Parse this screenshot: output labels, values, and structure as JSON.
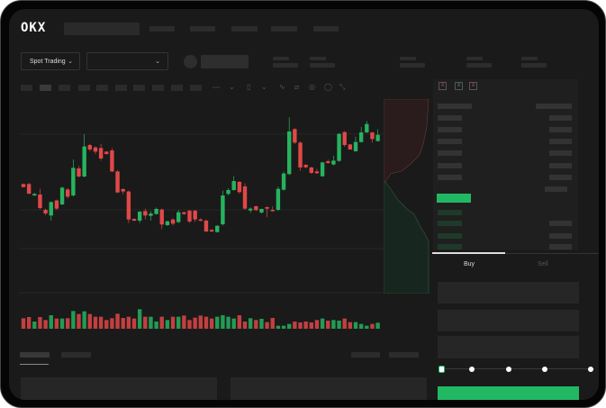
{
  "header": {
    "logo": "OKX"
  },
  "market_select": {
    "label": "Spot Trading",
    "pair_value": ""
  },
  "toolbar": {
    "icons": [
      "wave-icon",
      "chevron-down-icon",
      "candle-type-icon",
      "chevron-down-icon",
      "line-icon",
      "ruler-icon",
      "camera-icon",
      "settings-circle-icon",
      "fullscreen-icon"
    ]
  },
  "orderbook": {
    "view_icons": [
      "orderbook-both-icon",
      "orderbook-bids-icon",
      "orderbook-asks-icon"
    ]
  },
  "trade_form": {
    "tabs": [
      "Buy",
      "Sell"
    ],
    "active_tab": "Buy",
    "slider_value": 0,
    "slider_steps": [
      0,
      25,
      50,
      75,
      100
    ]
  },
  "colors": {
    "up": "#26b35f",
    "down": "#e04848",
    "background": "#1a1a1a",
    "accent": "#22b863"
  },
  "chart_data": {
    "type": "candlestick",
    "title": "",
    "xlabel": "",
    "ylabel": "",
    "grid": true,
    "note_units": "relative price, no axis printed",
    "ohlc": [
      [
        42.5,
        43,
        39.5,
        40
      ],
      [
        42.5,
        43.5,
        34,
        34.5
      ],
      [
        33,
        35,
        32.5,
        34.3
      ],
      [
        33.8,
        38.5,
        21.5,
        22.5
      ],
      [
        21,
        22,
        16.5,
        18
      ],
      [
        16.3,
        28,
        12,
        27.5
      ],
      [
        28.8,
        29.5,
        21,
        22
      ],
      [
        25.5,
        40.5,
        25,
        39.5
      ],
      [
        38,
        39,
        30.5,
        32
      ],
      [
        33,
        63,
        32,
        56
      ],
      [
        55.5,
        57.5,
        48,
        48.8
      ],
      [
        48.8,
        84,
        48,
        73.8
      ],
      [
        75,
        76,
        70,
        71.3
      ],
      [
        73,
        74,
        67.5,
        69.5
      ],
      [
        72.5,
        76,
        62,
        63.8
      ],
      [
        69.5,
        70,
        67,
        67.5
      ],
      [
        70.5,
        72.5,
        52.5,
        53
      ],
      [
        53,
        54,
        35,
        35.5
      ],
      [
        38.3,
        39,
        34,
        36.3
      ],
      [
        36.3,
        37,
        10,
        13
      ],
      [
        13.5,
        13.8,
        11.5,
        12
      ],
      [
        12,
        20,
        10,
        19.5
      ],
      [
        20,
        22,
        13,
        16.3
      ],
      [
        16,
        20,
        12,
        18
      ],
      [
        17.5,
        23,
        17,
        21.8
      ],
      [
        21.3,
        22,
        5,
        8.8
      ],
      [
        8.3,
        12,
        7.5,
        11.5
      ],
      [
        13,
        14,
        8,
        9.5
      ],
      [
        10.8,
        21,
        10,
        19
      ],
      [
        19,
        19.5,
        17,
        17.5
      ],
      [
        20.3,
        21,
        10,
        11.3
      ],
      [
        20.3,
        21,
        11,
        13
      ],
      [
        13,
        14,
        11.5,
        12
      ],
      [
        12,
        13,
        2.5,
        3
      ],
      [
        4.3,
        5,
        2.5,
        3
      ],
      [
        2.5,
        8,
        2,
        7.8
      ],
      [
        9,
        37,
        8,
        33
      ],
      [
        34.3,
        39,
        33,
        37.5
      ],
      [
        37.5,
        49,
        37,
        45
      ],
      [
        44.3,
        45,
        34.5,
        35.8
      ],
      [
        40.5,
        43,
        21,
        22
      ],
      [
        20.5,
        23,
        18.5,
        22
      ],
      [
        24,
        24.5,
        20,
        20.8
      ],
      [
        18.8,
        22,
        18,
        21.8
      ],
      [
        23.3,
        23.8,
        15,
        22
      ],
      [
        21,
        24,
        19.5,
        20
      ],
      [
        21,
        40.5,
        20,
        38.5
      ],
      [
        37.8,
        53,
        37,
        51.3
      ],
      [
        50.8,
        98,
        50,
        86.3
      ],
      [
        88.3,
        89,
        76,
        77
      ],
      [
        77,
        78,
        53.5,
        56.3
      ],
      [
        58.5,
        59,
        55.5,
        56.5
      ],
      [
        56.3,
        57,
        51,
        51.8
      ],
      [
        53,
        55,
        51,
        51.5
      ],
      [
        49,
        61,
        48.5,
        60.5
      ],
      [
        61.5,
        63,
        59.5,
        60
      ],
      [
        58.8,
        66,
        58,
        62
      ],
      [
        61.8,
        85,
        61,
        84.3
      ],
      [
        85.8,
        86.5,
        73.5,
        75
      ],
      [
        75.5,
        76,
        71,
        71.3
      ],
      [
        69.8,
        82,
        69.5,
        77.5
      ],
      [
        77.5,
        90,
        77,
        85.5
      ],
      [
        85.5,
        95,
        85,
        92.5
      ],
      [
        85.5,
        86,
        77,
        80
      ],
      [
        78.3,
        88,
        78,
        83.5
      ]
    ],
    "volume": [
      35,
      39,
      24,
      39,
      29,
      45,
      34,
      34,
      35,
      59,
      49,
      58,
      49,
      40,
      40,
      29,
      35,
      50,
      36,
      40,
      34,
      65,
      40,
      40,
      24,
      40,
      29,
      40,
      40,
      44,
      29,
      37,
      44,
      40,
      34,
      40,
      45,
      40,
      34,
      45,
      24,
      35,
      29,
      33,
      22,
      36,
      10,
      10,
      16,
      24,
      21,
      24,
      21,
      29,
      34,
      27,
      29,
      27,
      34,
      22,
      22,
      16,
      10,
      16,
      20
    ]
  }
}
